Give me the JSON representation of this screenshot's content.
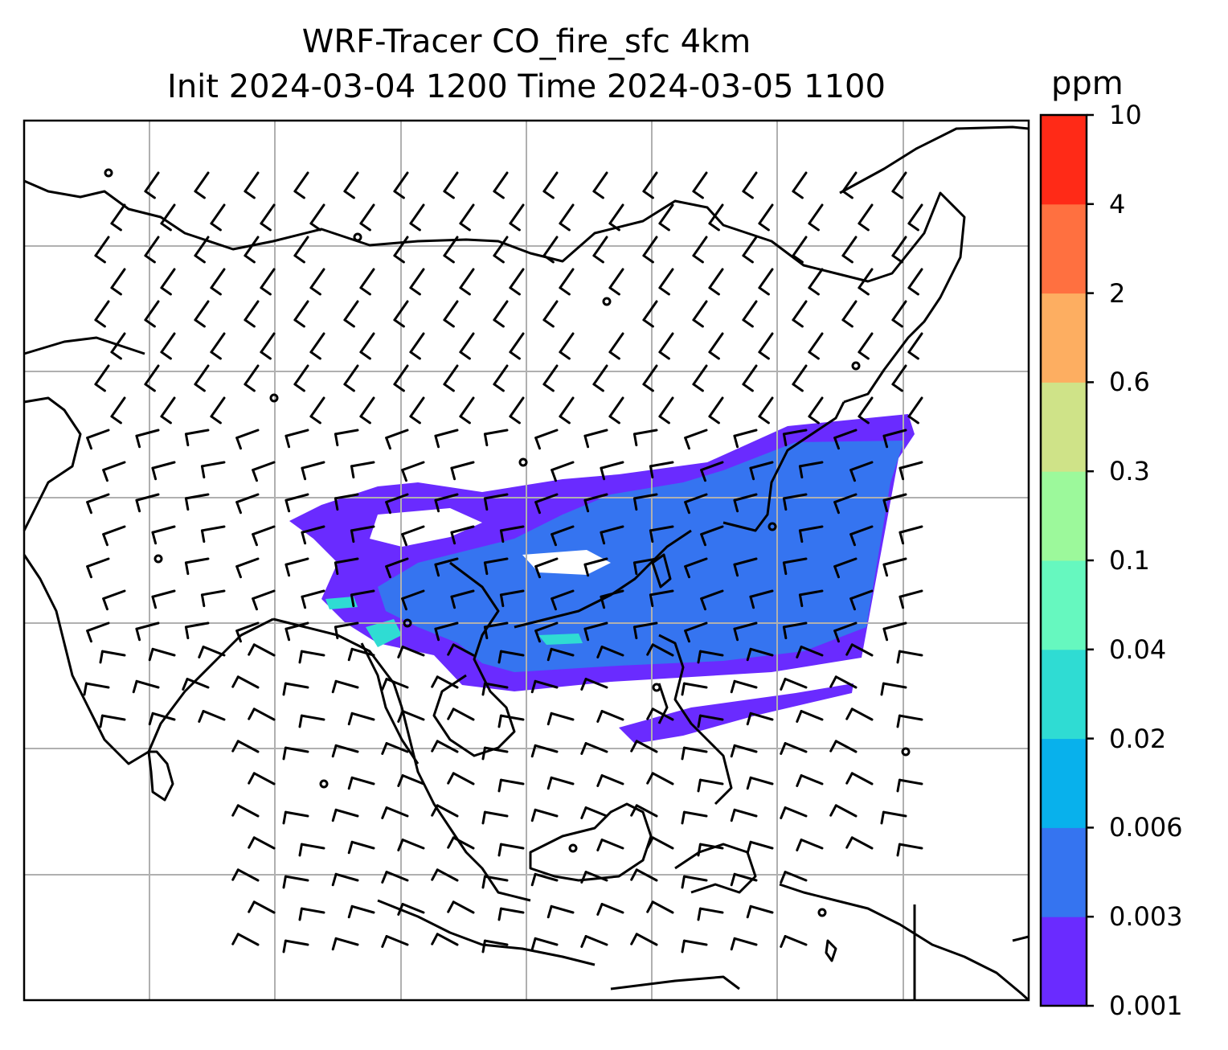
{
  "title": {
    "line1": "WRF-Tracer CO_fire_sfc 4km",
    "line2": "Init 2024-03-04 1200 Time 2024-03-05 1100"
  },
  "colorbar": {
    "unit": "ppm",
    "levels": [
      "0.001",
      "0.003",
      "0.006",
      "0.02",
      "0.04",
      "0.1",
      "0.3",
      "0.6",
      "2",
      "4",
      "10"
    ],
    "colors": [
      "#6a2bff",
      "#3574f0",
      "#08b1ec",
      "#2fdcd3",
      "#66f8bf",
      "#9cf99b",
      "#cfe388",
      "#fdae61",
      "#ff7040",
      "#ff2a17"
    ]
  },
  "map": {
    "variable": "CO_fire_sfc",
    "grid": "graticule",
    "wind_barbs": true,
    "plume_colors": {
      "low": "#6a2bff",
      "mid": "#3574f0",
      "high": "#2fdcd3"
    }
  }
}
